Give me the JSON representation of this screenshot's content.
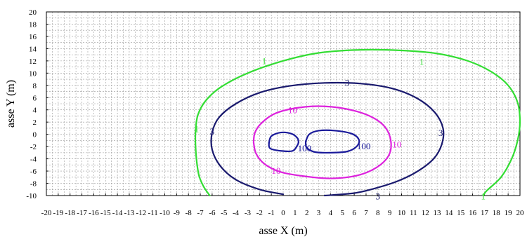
{
  "chart_data": {
    "type": "contour",
    "title": "",
    "xlabel": "asse X (m)",
    "ylabel": "asse Y (m)",
    "xlim": [
      -20,
      20
    ],
    "ylim": [
      -10,
      20
    ],
    "x_ticks": [
      -20,
      -19,
      -18,
      -17,
      -16,
      -15,
      -14,
      -13,
      -12,
      -11,
      -10,
      -9,
      -8,
      -7,
      -6,
      -5,
      -4,
      -3,
      -2,
      -1,
      0,
      1,
      2,
      3,
      4,
      5,
      6,
      7,
      8,
      9,
      10,
      11,
      12,
      13,
      14,
      15,
      16,
      17,
      18,
      19,
      20
    ],
    "y_ticks": [
      -10,
      -8,
      -6,
      -4,
      -2,
      0,
      2,
      4,
      6,
      8,
      10,
      12,
      14,
      16,
      18,
      20
    ],
    "grid": true,
    "series": [
      {
        "name": "1",
        "color": "#33dd33",
        "points": [
          [
            -6.2,
            -10
          ],
          [
            -6.7,
            -8.6
          ],
          [
            -7.1,
            -6.8
          ],
          [
            -7.3,
            -4.5
          ],
          [
            -7.4,
            -2
          ],
          [
            -7.4,
            0.5
          ],
          [
            -7.2,
            3.2
          ],
          [
            -6.5,
            5.6
          ],
          [
            -5.2,
            7.8
          ],
          [
            -3,
            10
          ],
          [
            0,
            12
          ],
          [
            3,
            13.3
          ],
          [
            6.5,
            13.8
          ],
          [
            10,
            13.7
          ],
          [
            13,
            13.2
          ],
          [
            15.6,
            12
          ],
          [
            17.6,
            10.2
          ],
          [
            19,
            8
          ],
          [
            19.8,
            5.2
          ],
          [
            20,
            2
          ],
          [
            19.8,
            -1
          ],
          [
            19.3,
            -4
          ],
          [
            18.4,
            -7
          ],
          [
            17.2,
            -9.2
          ],
          [
            16.9,
            -10
          ]
        ],
        "labels": [
          [
            -1.6,
            11.9
          ],
          [
            11.7,
            11.8
          ],
          [
            -7.3,
            0.8
          ],
          [
            16.9,
            -10.2
          ]
        ]
      },
      {
        "name": "3",
        "color": "#1a1a6e",
        "points": [
          [
            0,
            -9.8
          ],
          [
            -2,
            -9
          ],
          [
            -4,
            -7.4
          ],
          [
            -5.3,
            -5.2
          ],
          [
            -6,
            -2.5
          ],
          [
            -6,
            0.3
          ],
          [
            -5.4,
            2.8
          ],
          [
            -4,
            5
          ],
          [
            -2,
            6.8
          ],
          [
            0.5,
            7.9
          ],
          [
            3.5,
            8.4
          ],
          [
            6.5,
            8.3
          ],
          [
            9.2,
            7.5
          ],
          [
            11.3,
            5.9
          ],
          [
            12.8,
            3.6
          ],
          [
            13.5,
            1
          ],
          [
            13.4,
            -1.6
          ],
          [
            12.7,
            -4
          ],
          [
            11.3,
            -6.1
          ],
          [
            9.6,
            -7.7
          ],
          [
            7.8,
            -8.8
          ],
          [
            6,
            -9.6
          ],
          [
            3.5,
            -10
          ]
        ],
        "labels": [
          [
            -6,
            0.4
          ],
          [
            5.4,
            8.4
          ],
          [
            13.3,
            0.2
          ],
          [
            8,
            -10.2
          ]
        ]
      },
      {
        "name": "10",
        "color": "#dd22dd",
        "points": [
          [
            -2.5,
            -1.3
          ],
          [
            -2.3,
            -3.1
          ],
          [
            -1.6,
            -4.8
          ],
          [
            -0.3,
            -6.1
          ],
          [
            1.6,
            -6.8
          ],
          [
            4,
            -7.2
          ],
          [
            6.3,
            -6.7
          ],
          [
            7.9,
            -5.4
          ],
          [
            8.9,
            -3.5
          ],
          [
            9.1,
            -1.2
          ],
          [
            8.6,
            1.2
          ],
          [
            7.3,
            3
          ],
          [
            5.2,
            4.2
          ],
          [
            2.9,
            4.6
          ],
          [
            0.8,
            4.2
          ],
          [
            -0.8,
            3.3
          ],
          [
            -1.9,
            1.7
          ],
          [
            -2.4,
            0.2
          ],
          [
            -2.5,
            -1.3
          ]
        ],
        "labels": [
          [
            0.8,
            3.9
          ],
          [
            9.6,
            -1.7
          ],
          [
            -0.6,
            -6
          ]
        ]
      },
      {
        "name": "100",
        "color": "#1a1a9a",
        "points": [
          [
            -1.2,
            -1.4
          ],
          [
            -1.1,
            -2.3
          ],
          [
            -0.2,
            -2.7
          ],
          [
            0.8,
            -2.7
          ],
          [
            1.2,
            -1.8
          ],
          [
            1.3,
            -1.3
          ]
        ],
        "labels": [
          [
            1.8,
            -2.3
          ]
        ]
      },
      {
        "name": "100",
        "color": "#1a1a9a",
        "points": [
          [
            1.3,
            -1.3
          ],
          [
            1.2,
            -0.6
          ],
          [
            0.7,
            0.1
          ],
          [
            -0.2,
            0.3
          ],
          [
            -1,
            -0.3
          ],
          [
            -1.2,
            -1.4
          ]
        ],
        "labels": []
      },
      {
        "name": "100",
        "color": "#1a1a9a",
        "points": [
          [
            1.9,
            -1.2
          ],
          [
            2,
            -2.2
          ],
          [
            2.7,
            -2.9
          ],
          [
            4,
            -3
          ],
          [
            5.4,
            -2.8
          ],
          [
            6.2,
            -2
          ],
          [
            6.4,
            -0.9
          ],
          [
            5.8,
            0.1
          ],
          [
            4.4,
            0.6
          ],
          [
            3,
            0.6
          ],
          [
            2.2,
            0
          ],
          [
            1.9,
            -1.2
          ]
        ],
        "labels": [
          [
            6.8,
            -2
          ]
        ]
      }
    ]
  }
}
